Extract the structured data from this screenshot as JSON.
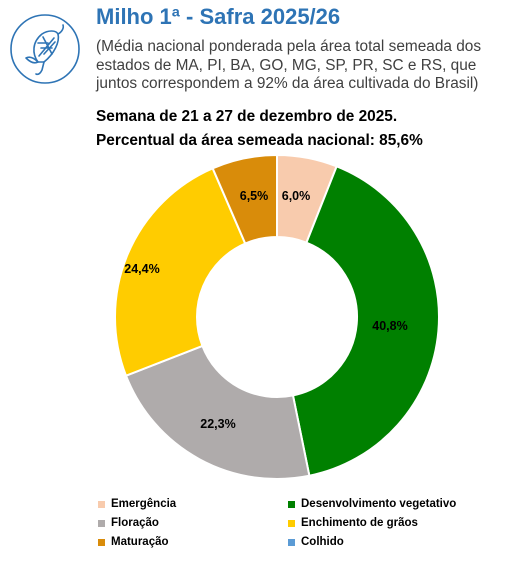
{
  "header": {
    "title": "Milho 1ª - Safra 2025/26",
    "subtitle": "(Média nacional ponderada pela área total semeada dos estados de MA, PI, BA, GO, MG, SP, PR, SC e RS, que juntos correspondem a 92% da área cultivada do Brasil)",
    "week": "Semana de 21 a 27 de dezembro de 2025.",
    "percent_line": "Percentual da área semeada nacional: 85,6%"
  },
  "icon": "corn-icon",
  "chart_data": {
    "type": "pie",
    "donut": true,
    "legend_position": "bottom",
    "slices": [
      {
        "label": "Emergência",
        "value": 6.0,
        "value_label": "6,0%",
        "color": "#f8cbad"
      },
      {
        "label": "Desenvolvimento vegetativo",
        "value": 40.8,
        "value_label": "40,8%",
        "color": "#008000"
      },
      {
        "label": "Floração",
        "value": 22.3,
        "value_label": "22,3%",
        "color": "#afabab"
      },
      {
        "label": "Enchimento de grãos",
        "value": 24.4,
        "value_label": "24,4%",
        "color": "#ffcc00"
      },
      {
        "label": "Maturação",
        "value": 6.5,
        "value_label": "6,5%",
        "color": "#d98c0a"
      },
      {
        "label": "Colhido",
        "value": 0,
        "value_label": "",
        "color": "#5b9bd5"
      }
    ]
  }
}
